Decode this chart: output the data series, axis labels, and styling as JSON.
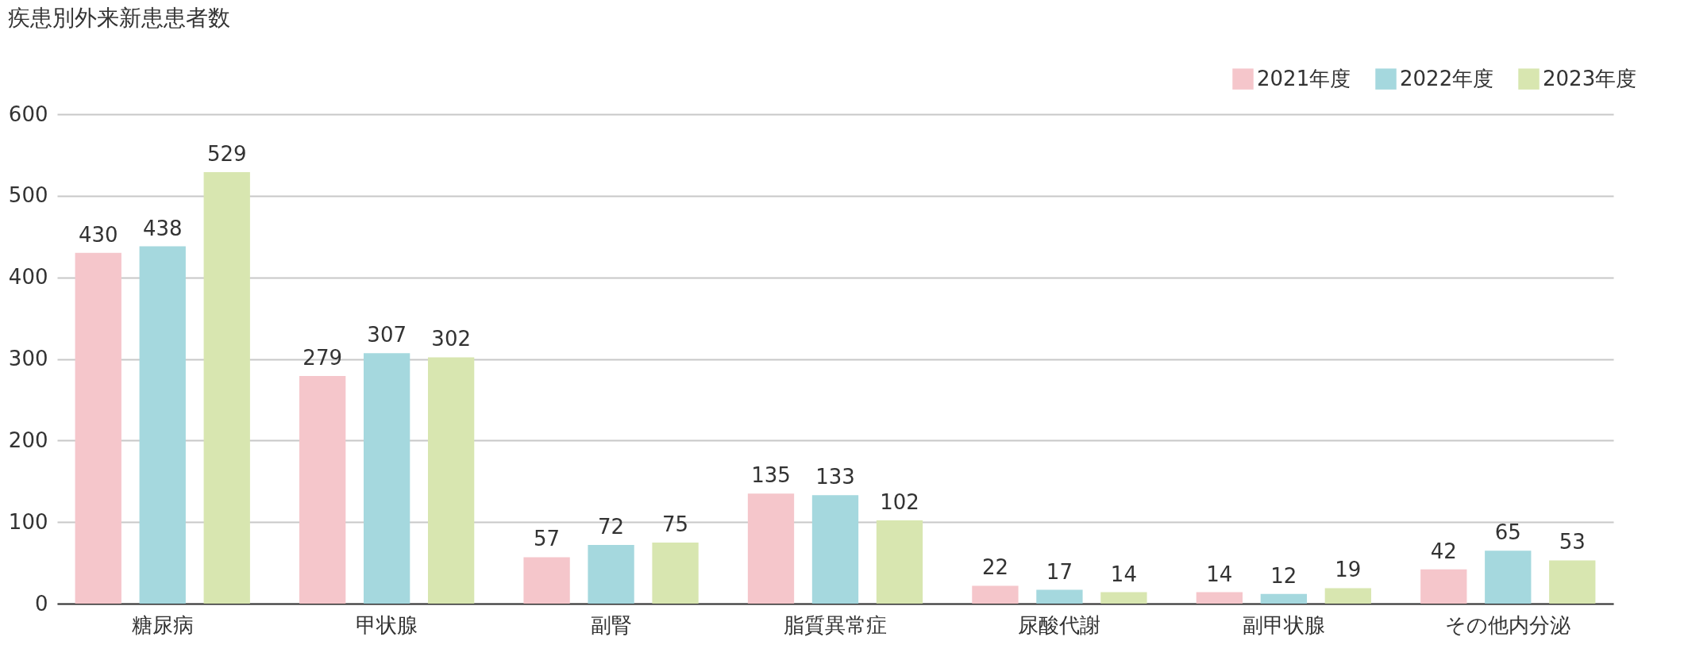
{
  "chart_data": {
    "type": "bar",
    "title": "疾患別外来新患患者数",
    "categories": [
      "糖尿病",
      "甲状腺",
      "副腎",
      "脂質異常症",
      "尿酸代謝",
      "副甲状腺",
      "その他内分泌"
    ],
    "series": [
      {
        "name": "2021年度",
        "color": "#f5c6cb",
        "values": [
          430,
          279,
          57,
          135,
          22,
          14,
          42
        ]
      },
      {
        "name": "2022年度",
        "color": "#a5d8de",
        "values": [
          438,
          307,
          72,
          133,
          17,
          12,
          65
        ]
      },
      {
        "name": "2023年度",
        "color": "#d8e6b0",
        "values": [
          529,
          302,
          75,
          102,
          14,
          19,
          53
        ]
      }
    ],
    "ylim": [
      0,
      600
    ],
    "yticks": [
      0,
      100,
      200,
      300,
      400,
      500,
      600
    ],
    "grid": "y",
    "legend": "top right",
    "data_labels": true
  }
}
